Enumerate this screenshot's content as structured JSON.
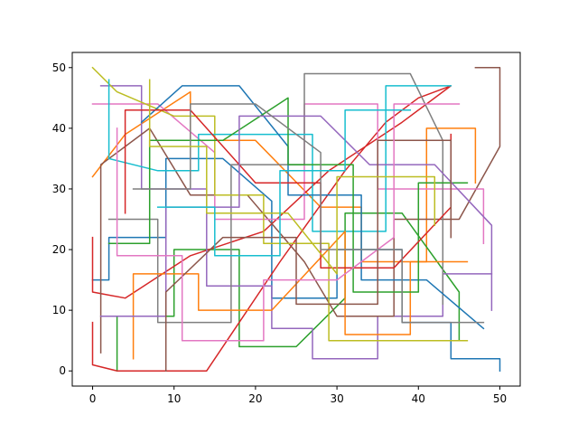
{
  "chart_data": {
    "type": "line",
    "title": "",
    "xlabel": "",
    "ylabel": "",
    "xlim": [
      -2.5,
      52.5
    ],
    "ylim": [
      -2.5,
      52.5
    ],
    "xticks": [
      0,
      10,
      20,
      30,
      40,
      50
    ],
    "yticks": [
      0,
      10,
      20,
      30,
      40,
      50
    ],
    "xtick_labels": [
      "0",
      "10",
      "20",
      "30",
      "40",
      "50"
    ],
    "ytick_labels": [
      "0",
      "10",
      "20",
      "30",
      "40",
      "50"
    ],
    "grid": false,
    "legend": "none",
    "palette": [
      "#1f77b4",
      "#ff7f0e",
      "#2ca02c",
      "#d62728",
      "#9467bd",
      "#8c564b",
      "#e377c2",
      "#7f7f7f",
      "#bcbd22",
      "#17becf"
    ],
    "series": [
      {
        "color": "#1f77b4",
        "x": [
          0,
          2,
          2,
          9,
          9,
          16,
          22,
          22,
          30,
          30,
          38,
          38,
          44,
          44,
          50,
          50
        ],
        "y": [
          15,
          15,
          22,
          22,
          35,
          35,
          28,
          12,
          12,
          20,
          20,
          8,
          8,
          2,
          2,
          0
        ]
      },
      {
        "color": "#ff7f0e",
        "x": [
          0,
          4,
          12,
          12,
          20,
          28,
          33,
          33,
          41,
          41,
          47,
          47
        ],
        "y": [
          32,
          39,
          46,
          38,
          38,
          27,
          27,
          18,
          18,
          40,
          40,
          31
        ]
      },
      {
        "color": "#2ca02c",
        "x": [
          3,
          3,
          10,
          10,
          18,
          18,
          25,
          31,
          31,
          38,
          45,
          45,
          40
        ],
        "y": [
          0,
          9,
          9,
          20,
          20,
          4,
          4,
          12,
          26,
          26,
          13,
          5,
          5
        ]
      },
      {
        "color": "#d62728",
        "x": [
          0,
          0,
          3,
          14,
          23,
          31,
          36,
          40,
          44,
          38,
          29,
          21,
          12,
          4,
          0,
          0
        ],
        "y": [
          8,
          1,
          0,
          0,
          18,
          33,
          41,
          45,
          47,
          41,
          33,
          23,
          19,
          12,
          13,
          22
        ]
      },
      {
        "color": "#9467bd",
        "x": [
          1,
          6,
          6,
          14,
          14,
          22,
          22,
          27,
          27,
          35,
          35,
          43,
          43,
          49
        ],
        "y": [
          47,
          47,
          30,
          30,
          14,
          14,
          7,
          7,
          2,
          2,
          9,
          9,
          16,
          16
        ]
      },
      {
        "color": "#8c564b",
        "x": [
          1,
          1,
          7,
          12,
          19,
          26,
          30,
          37,
          37,
          45,
          50,
          50,
          47
        ],
        "y": [
          3,
          34,
          40,
          29,
          29,
          18,
          9,
          9,
          25,
          25,
          37,
          50,
          50
        ]
      },
      {
        "color": "#e377c2",
        "x": [
          0,
          8,
          15,
          15,
          26,
          26,
          35,
          35,
          48,
          48
        ],
        "y": [
          44,
          44,
          36,
          25,
          25,
          44,
          44,
          30,
          30,
          21
        ]
      },
      {
        "color": "#7f7f7f",
        "x": [
          2,
          8,
          8,
          17,
          17,
          26,
          26,
          39,
          43,
          43
        ],
        "y": [
          25,
          25,
          8,
          8,
          34,
          34,
          49,
          49,
          38,
          11
        ]
      },
      {
        "color": "#bcbd22",
        "x": [
          0,
          3,
          10,
          15,
          15,
          21,
          21,
          29,
          29,
          46
        ],
        "y": [
          50,
          46,
          42,
          42,
          29,
          29,
          21,
          21,
          5,
          5
        ]
      },
      {
        "color": "#17becf",
        "x": [
          2,
          2,
          8,
          13,
          13,
          27,
          27,
          36,
          36,
          44
        ],
        "y": [
          48,
          35,
          33,
          33,
          39,
          39,
          23,
          23,
          47,
          47
        ]
      },
      {
        "color": "#1f77b4",
        "x": [
          6,
          11,
          18,
          24,
          24,
          33,
          33,
          41,
          48
        ],
        "y": [
          41,
          47,
          47,
          37,
          29,
          29,
          15,
          15,
          7
        ]
      },
      {
        "color": "#ff7f0e",
        "x": [
          5,
          5,
          13,
          13,
          22,
          31,
          31,
          39,
          39,
          46
        ],
        "y": [
          2,
          16,
          16,
          10,
          10,
          23,
          6,
          6,
          18,
          18
        ]
      },
      {
        "color": "#2ca02c",
        "x": [
          2,
          7,
          7,
          16,
          24,
          24,
          32,
          32,
          40,
          40,
          46
        ],
        "y": [
          21,
          21,
          38,
          38,
          45,
          34,
          34,
          13,
          13,
          31,
          31
        ]
      },
      {
        "color": "#d62728",
        "x": [
          4,
          4,
          12,
          20,
          28,
          28,
          37,
          44,
          44
        ],
        "y": [
          26,
          43,
          43,
          31,
          31,
          17,
          17,
          27,
          39
        ]
      },
      {
        "color": "#9467bd",
        "x": [
          1,
          9,
          9,
          18,
          18,
          28,
          34,
          42,
          49,
          49
        ],
        "y": [
          9,
          9,
          27,
          27,
          42,
          42,
          34,
          34,
          24,
          10
        ]
      },
      {
        "color": "#8c564b",
        "x": [
          9,
          9,
          16,
          25,
          25,
          35,
          35,
          44,
          44
        ],
        "y": [
          0,
          13,
          22,
          22,
          11,
          11,
          38,
          38,
          22
        ]
      },
      {
        "color": "#e377c2",
        "x": [
          3,
          3,
          11,
          11,
          21,
          21,
          30,
          37,
          37,
          45
        ],
        "y": [
          40,
          19,
          19,
          5,
          5,
          15,
          15,
          22,
          44,
          44
        ]
      },
      {
        "color": "#7f7f7f",
        "x": [
          5,
          12,
          12,
          20,
          28,
          28,
          38,
          38,
          48
        ],
        "y": [
          30,
          30,
          44,
          44,
          36,
          20,
          20,
          8,
          8
        ]
      },
      {
        "color": "#bcbd22",
        "x": [
          7,
          7,
          14,
          14,
          24,
          30,
          30,
          42,
          42
        ],
        "y": [
          48,
          37,
          37,
          26,
          26,
          16,
          32,
          32,
          24
        ]
      },
      {
        "color": "#17becf",
        "x": [
          8,
          15,
          15,
          23,
          23,
          31,
          31,
          39
        ],
        "y": [
          27,
          27,
          19,
          19,
          33,
          33,
          43,
          43
        ]
      }
    ]
  }
}
